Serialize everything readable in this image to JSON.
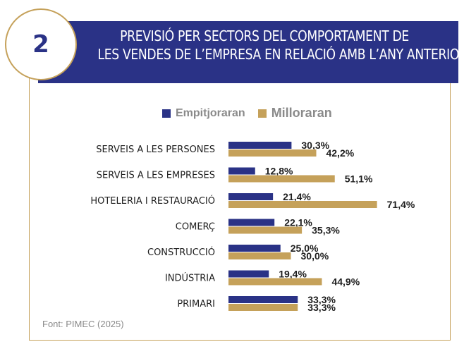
{
  "header": {
    "number": "2",
    "title_lines": [
      "PREVISIÓ PER SECTORS DEL COMPORTAMENT DE",
      "LES VENDES DE L’EMPRESA EN RELACIÓ AMB L’ANY ANTERIOR"
    ]
  },
  "colors": {
    "navy": "#2a3286",
    "gold": "#c5a15a"
  },
  "chart_data": {
    "type": "bar",
    "orientation": "horizontal",
    "categories": [
      "SERVEIS A LES PERSONES",
      "SERVEIS A LES EMPRESES",
      "HOTELERIA I RESTAURACIÓ",
      "COMERÇ",
      "CONSTRUCCIÓ",
      "INDÚSTRIA",
      "PRIMARI"
    ],
    "series": [
      {
        "name": "Empitjoraran",
        "color": "#2a3286",
        "values": [
          30.3,
          12.8,
          21.4,
          22.1,
          25.0,
          19.4,
          33.3
        ],
        "labels": [
          "30,3%",
          "12,8%",
          "21,4%",
          "22,1%",
          "25,0%",
          "19,4%",
          "33,3%"
        ]
      },
      {
        "name": "Milloraran",
        "color": "#c5a15a",
        "values": [
          42.2,
          51.1,
          71.4,
          35.3,
          30.0,
          44.9,
          33.3
        ],
        "labels": [
          "42,2%",
          "51,1%",
          "71,4%",
          "35,3%",
          "30,0%",
          "44,9%",
          "33,3%"
        ]
      }
    ],
    "legend_position": "top",
    "grid": false
  },
  "source": "Font: PIMEC (2025)"
}
